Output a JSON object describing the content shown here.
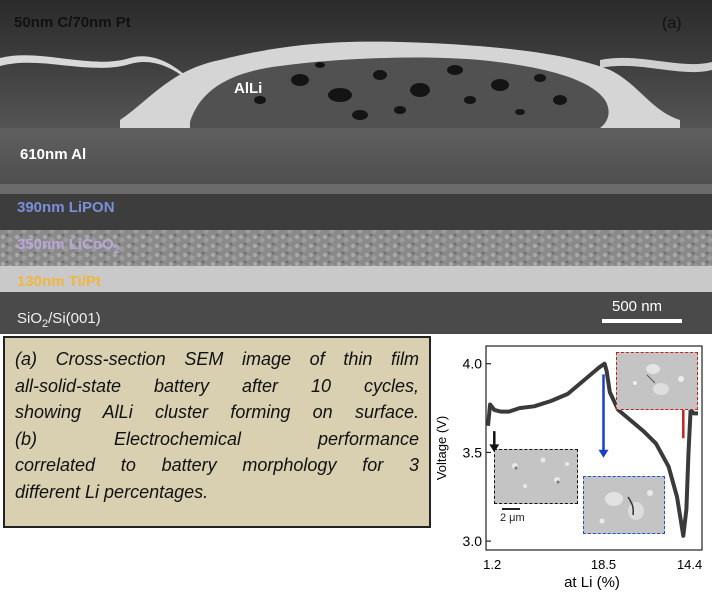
{
  "panel_a": {
    "letter": "(a)",
    "layers": {
      "cap": "50nm C/70nm Pt",
      "cluster": "AlLi",
      "al": "610nm Al",
      "lipon": "390nm LiPON",
      "licoo2_main": "350nm LiCoO",
      "licoo2_sub": "2",
      "tipt": "130nm Ti/Pt",
      "sio2_a": "SiO",
      "sio2_sub": "2",
      "sio2_b": "/Si(001)"
    },
    "label_colors": {
      "white": "#ffffff",
      "black": "#111111",
      "lipon": "#7a8fd8",
      "licoo2": "#b9a7d8",
      "tipt": "#f0b640"
    },
    "scale_bar": "500 nm"
  },
  "caption": {
    "lines": [
      "(a) Cross-section SEM image of thin film",
      "all-solid-state battery after 10 cycles,",
      "showing AlLi cluster forming on surface.",
      "(b)   Electrochemical   performance",
      "correlated to battery morphology for 3",
      "different Li percentages."
    ],
    "background": "#d8d0b0"
  },
  "chart_data": {
    "type": "line",
    "xlabel": "at Li (%)",
    "ylabel": "Voltage (V)",
    "x_ticks": [
      "1.2",
      "18.5",
      "14.4"
    ],
    "y_ticks": [
      "3.0",
      "3.5",
      "4.0"
    ],
    "ylim": [
      2.95,
      4.1
    ],
    "series": [
      {
        "x": [
          0.0,
          0.01,
          0.03,
          0.06,
          0.1,
          0.15,
          0.22,
          0.3,
          0.38,
          0.45,
          0.5,
          0.53,
          0.555,
          0.565,
          0.58,
          0.62,
          0.68,
          0.74,
          0.8,
          0.86,
          0.9,
          0.93,
          0.945,
          0.955,
          0.965,
          0.98,
          1.0
        ],
        "y": [
          3.65,
          3.77,
          3.74,
          3.73,
          3.73,
          3.75,
          3.76,
          3.79,
          3.83,
          3.9,
          3.95,
          3.98,
          4.0,
          3.96,
          3.84,
          3.74,
          3.68,
          3.62,
          3.55,
          3.42,
          3.25,
          3.03,
          3.18,
          3.5,
          3.74,
          3.72,
          3.72
        ]
      }
    ],
    "arrows": [
      {
        "color": "#111111",
        "x": 0.03,
        "from_y": 3.62,
        "to_y": 3.5
      },
      {
        "color": "#1a3fc8",
        "x": 0.55,
        "from_y": 3.94,
        "to_y": 3.47
      },
      {
        "color": "#c0261e",
        "x": 0.93,
        "from_y": 3.58,
        "to_y": 3.8
      }
    ],
    "inset_scale_label": "2 μm",
    "inset_colors": [
      "#111111",
      "#1a55d8",
      "#c0261e"
    ],
    "line_color": "#3a3a3a"
  }
}
